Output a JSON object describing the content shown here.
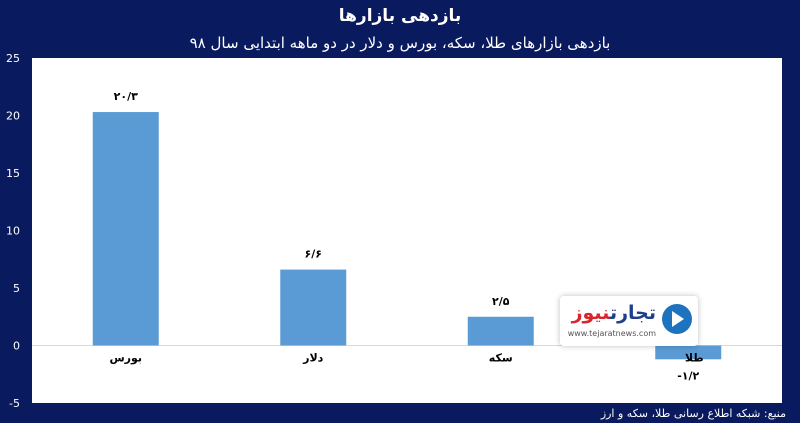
{
  "chart_data": {
    "type": "bar",
    "title": "بازدهی بازارها",
    "subtitle": "بازدهی بازارهای طلا، سکه، بورس و دلار در دو ماهه ابتدایی سال ۹۸",
    "categories": [
      "بورس",
      "دلار",
      "سکه",
      "طلا"
    ],
    "values": [
      20.3,
      6.6,
      2.5,
      -1.2
    ],
    "value_labels": [
      "۲۰/۳",
      "۶/۶",
      "۲/۵",
      "-۱/۲"
    ],
    "ylim": [
      -5,
      25
    ],
    "yticks": [
      {
        "value": 25,
        "label": "25"
      },
      {
        "value": 20,
        "label": "20"
      },
      {
        "value": 15,
        "label": "15"
      },
      {
        "value": 10,
        "label": "10"
      },
      {
        "value": 5,
        "label": "5"
      },
      {
        "value": 0,
        "label": "0"
      },
      {
        "value": -5,
        "label": "-5"
      }
    ],
    "grid": false,
    "colors": {
      "bar": "#5b9bd5",
      "background": "#0a1a5e",
      "plot": "#ffffff"
    }
  },
  "source": "منبع: شبکه اطلاع رسانی طلا، سکه و ارز",
  "watermark": {
    "name_main": "تجارت",
    "name_accent": "نیوز",
    "url": "www.tejaratnews.com",
    "icon": "arrow-globe-icon"
  }
}
